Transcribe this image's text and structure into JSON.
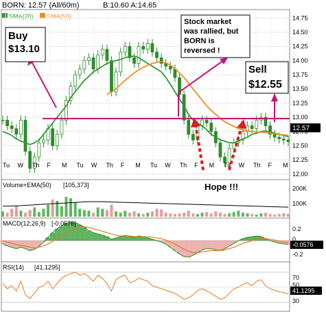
{
  "header": {
    "symbol_line": "BORN: 12.57 (All/60m)",
    "bid_ask": "B:10.60 A:14.65"
  },
  "colors": {
    "price_up": "#2e8b2e",
    "price_down": "#2e8b2e",
    "sma20": "#2e9a2e",
    "sma50": "#f08c1e",
    "annotation_line": "#c0167a",
    "arrow_red": "#e01b1b",
    "volume_up": "#5cb85c",
    "volume_down": "#e89a9a",
    "macd_line": "#2e9a2e",
    "signal_line": "#e07a20",
    "macd_hist_pos": "#2e9a2e",
    "macd_hist_neg": "#e89a9a",
    "rsi_line": "#e07a20",
    "current_tag": "#000000"
  },
  "chart_data": [
    {
      "type": "line",
      "name": "price",
      "legend": [
        {
          "label": "SMA(20)",
          "color": "#2e9a2e"
        },
        {
          "label": "SMA(50)",
          "color": "#f08c1e"
        }
      ],
      "x_ticks": [
        "Tu",
        "W",
        "Th",
        "F",
        "M",
        "Tu",
        "W",
        "Th",
        "F",
        "M",
        "Tu",
        "W",
        "Th",
        "F",
        "M",
        "Tu",
        "W",
        "Th",
        "F",
        "M"
      ],
      "y_ticks": [
        12.0,
        12.25,
        12.5,
        12.75,
        13.0,
        13.25,
        13.5,
        13.75,
        14.0,
        14.25,
        14.5,
        14.75
      ],
      "ylim": [
        11.95,
        14.85
      ],
      "current_value": "12.57",
      "series": [
        {
          "name": "Price",
          "values": [
            12.95,
            12.85,
            12.8,
            12.7,
            12.95,
            12.4,
            12.1,
            12.3,
            12.55,
            12.6,
            12.8,
            12.5,
            12.7,
            12.95,
            13.3,
            13.55,
            13.75,
            13.85,
            14.0,
            14.05,
            13.85,
            14.1,
            14.2,
            14.0,
            13.45,
            13.8,
            14.15,
            14.25,
            14.05,
            13.95,
            14.25,
            14.2,
            14.3,
            14.15,
            14.05,
            13.95,
            13.9,
            13.85,
            13.7,
            13.4,
            12.95,
            12.7,
            12.6,
            12.85,
            12.95,
            12.9,
            12.75,
            12.55,
            12.3,
            12.2,
            12.45,
            12.55,
            12.6,
            12.75,
            12.85,
            12.8,
            12.95,
            13.0,
            12.85,
            12.7,
            12.65,
            12.62,
            12.6,
            12.57
          ]
        },
        {
          "name": "SMA(20)",
          "values": [
            12.75,
            12.72,
            12.68,
            12.62,
            12.58,
            12.55,
            12.52,
            12.55,
            12.6,
            12.7,
            12.8,
            12.9,
            13.0,
            13.1,
            13.2,
            13.35,
            13.45,
            13.55,
            13.65,
            13.72,
            13.8,
            13.85,
            13.9,
            13.95,
            13.98,
            14.0,
            14.02,
            14.05,
            14.07,
            14.08,
            14.05,
            14.0,
            13.95,
            13.9,
            13.85,
            13.8,
            13.7,
            13.58,
            13.45,
            13.32,
            13.2,
            13.05,
            12.95,
            12.9,
            12.85,
            12.78,
            12.7,
            12.65,
            12.6,
            12.58,
            12.55,
            12.55,
            12.58,
            12.62,
            12.65,
            12.7,
            12.72,
            12.75,
            12.76,
            12.74,
            12.72,
            12.7,
            12.68,
            12.66
          ]
        },
        {
          "name": "SMA(50)",
          "values": [
            null,
            null,
            null,
            null,
            null,
            null,
            null,
            null,
            null,
            null,
            null,
            null,
            null,
            null,
            null,
            null,
            null,
            null,
            null,
            null,
            null,
            null,
            null,
            13.4,
            13.45,
            13.5,
            13.58,
            13.65,
            13.72,
            13.78,
            13.84,
            13.88,
            13.92,
            13.95,
            13.97,
            13.98,
            13.96,
            13.92,
            13.86,
            13.78,
            13.7,
            13.6,
            13.5,
            13.4,
            13.3,
            13.2,
            13.12,
            13.05,
            12.98,
            12.92,
            12.88,
            12.84,
            12.8,
            12.78,
            12.76,
            12.75,
            12.74,
            12.74,
            12.73,
            12.72,
            12.71,
            12.7,
            12.69,
            12.68
          ]
        }
      ],
      "annotations": [
        {
          "text_lines": [
            "Buy",
            "$13.10"
          ]
        },
        {
          "text_lines": [
            "Stock market",
            "was rallied, but",
            "BORN is",
            "reversed !"
          ]
        },
        {
          "text_lines": [
            "Sell",
            "$12.55"
          ]
        },
        {
          "text": "Hope !!!"
        }
      ]
    },
    {
      "type": "bar",
      "name": "volume",
      "label": "Volume+EMA(50)",
      "value": "[105,373]",
      "y_ticks": [
        "200K",
        "100K"
      ],
      "ylim": [
        0,
        260000
      ],
      "values": [
        40000,
        30000,
        60000,
        80000,
        45000,
        30000,
        50000,
        70000,
        35000,
        60000,
        90000,
        130000,
        120000,
        80000,
        150000,
        140000,
        110000,
        60000,
        50000,
        45000,
        30000,
        70000,
        60000,
        50000,
        90000,
        40000,
        30000,
        45000,
        30000,
        40000,
        25000,
        20000,
        30000,
        40000,
        60000,
        55000,
        30000,
        25000,
        20000,
        25000,
        30000,
        45000,
        25000,
        20000,
        30000,
        35000,
        25000,
        40000,
        30000,
        20000,
        25000,
        35000,
        45000,
        30000,
        25000,
        20000,
        15000,
        25000,
        30000,
        20000,
        15000,
        20000,
        25000,
        20000
      ],
      "ema": [
        80000,
        80000,
        80000,
        82000,
        84000,
        86000,
        88000,
        90000,
        92000,
        94000,
        96000,
        98000,
        100000,
        102000,
        104000,
        106000,
        108000,
        110000,
        112000,
        114000,
        114000,
        114000,
        113000,
        112000,
        111000,
        110000,
        109000,
        108000,
        107000,
        106000,
        105000,
        104000,
        103000,
        102000,
        101000,
        100000,
        99000,
        98000,
        97000,
        96000,
        95000,
        94000,
        93000,
        92000,
        91000,
        90000,
        89000,
        88000,
        87000,
        86000,
        85000,
        84000,
        83000,
        82000,
        81000,
        80000,
        79000,
        78000,
        77000,
        76000,
        75000,
        74000,
        73000,
        72000
      ]
    },
    {
      "type": "line",
      "name": "macd",
      "label": "MACD(12,26,9)",
      "value": "[-0.0576]",
      "current_value": "-0.0576",
      "y_ticks": [
        "0.2",
        "0",
        "-0.2"
      ],
      "ylim": [
        -0.3,
        0.3
      ],
      "series": [
        {
          "name": "MACD",
          "values": [
            -0.05,
            -0.08,
            -0.1,
            -0.12,
            -0.1,
            -0.12,
            -0.15,
            -0.13,
            -0.08,
            -0.02,
            0.05,
            0.12,
            0.18,
            0.22,
            0.26,
            0.28,
            0.27,
            0.24,
            0.2,
            0.15,
            0.12,
            0.1,
            0.08,
            0.06,
            0.02,
            0.04,
            0.06,
            0.08,
            0.06,
            0.05,
            0.07,
            0.06,
            0.04,
            0.02,
            0.0,
            -0.02,
            -0.05,
            -0.1,
            -0.15,
            -0.2,
            -0.24,
            -0.25,
            -0.22,
            -0.18,
            -0.14,
            -0.12,
            -0.12,
            -0.14,
            -0.15,
            -0.12,
            -0.08,
            -0.04,
            0.0,
            0.03,
            0.05,
            0.06,
            0.07,
            0.06,
            0.03,
            0.0,
            -0.02,
            -0.04,
            -0.05,
            -0.0576
          ]
        },
        {
          "name": "Signal",
          "values": [
            0.0,
            -0.02,
            -0.04,
            -0.06,
            -0.07,
            -0.08,
            -0.1,
            -0.11,
            -0.1,
            -0.08,
            -0.05,
            -0.01,
            0.04,
            0.08,
            0.12,
            0.16,
            0.19,
            0.21,
            0.21,
            0.2,
            0.18,
            0.16,
            0.14,
            0.12,
            0.1,
            0.08,
            0.07,
            0.07,
            0.07,
            0.06,
            0.06,
            0.06,
            0.06,
            0.05,
            0.04,
            0.03,
            0.01,
            -0.02,
            -0.05,
            -0.09,
            -0.13,
            -0.16,
            -0.18,
            -0.18,
            -0.17,
            -0.16,
            -0.15,
            -0.15,
            -0.15,
            -0.14,
            -0.12,
            -0.1,
            -0.07,
            -0.04,
            -0.02,
            0.0,
            0.02,
            0.03,
            0.03,
            0.02,
            0.01,
            -0.01,
            -0.02,
            -0.03
          ]
        }
      ]
    },
    {
      "type": "line",
      "name": "rsi",
      "label": "RSI(14)",
      "value": "[41.1295]",
      "current_value": "41.1295",
      "y_ticks": [
        "70",
        "50",
        "30"
      ],
      "ylim": [
        20,
        80
      ],
      "series": [
        {
          "name": "RSI",
          "values": [
            55,
            48,
            52,
            45,
            58,
            40,
            35,
            42,
            50,
            52,
            58,
            48,
            55,
            62,
            66,
            68,
            70,
            66,
            68,
            64,
            58,
            66,
            62,
            55,
            45,
            60,
            64,
            66,
            56,
            58,
            62,
            60,
            58,
            52,
            50,
            48,
            46,
            44,
            42,
            38,
            34,
            36,
            40,
            46,
            48,
            45,
            42,
            38,
            34,
            36,
            42,
            48,
            50,
            54,
            56,
            52,
            58,
            60,
            52,
            48,
            46,
            44,
            43,
            41
          ]
        }
      ]
    }
  ]
}
